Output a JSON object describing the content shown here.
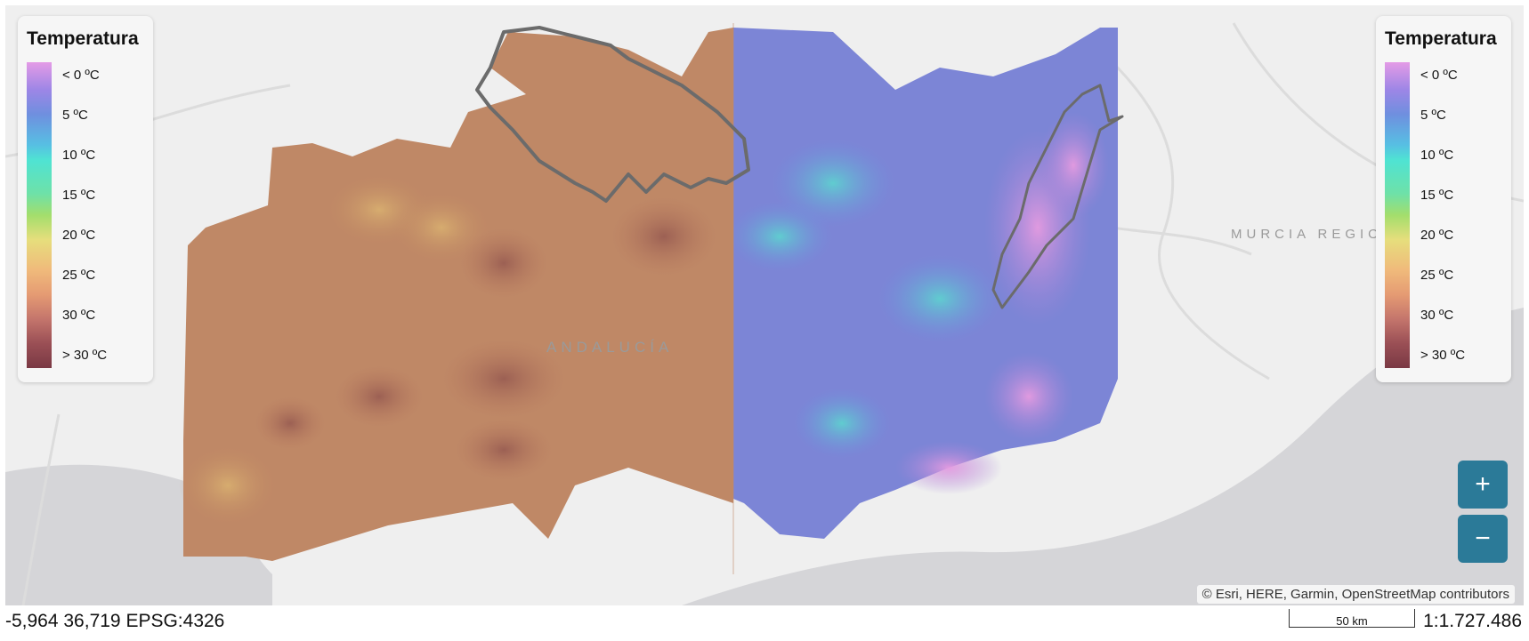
{
  "map": {
    "region_labels": {
      "andalucia": "ANDALUCÍA",
      "murcia": "MURCIA REGION"
    },
    "attribution": "© Esri, HERE, Garmin, OpenStreetMap contributors",
    "layers": {
      "left_swipe": "temperature-tinted-brown",
      "right_swipe": "temperature-purple-blue"
    }
  },
  "legend_left": {
    "title": "Temperatura",
    "entries": [
      "< 0 ºC",
      "5 ºC",
      "10 ºC",
      "15 ºC",
      "20 ºC",
      "25 ºC",
      "30 ºC",
      "> 30 ºC"
    ]
  },
  "legend_right": {
    "title": "Temperatura",
    "entries": [
      "< 0 ºC",
      "5 ºC",
      "10 ºC",
      "15 ºC",
      "20 ºC",
      "25 ºC",
      "30 ºC",
      "> 30 ºC"
    ]
  },
  "legend_colors": [
    "#e49be6",
    "#6f8fdf",
    "#4fe3d3",
    "#a3de6c",
    "#e6de7c",
    "#f0ba7b",
    "#c4756c",
    "#7a3944"
  ],
  "controls": {
    "zoom_in": "+",
    "zoom_out": "−"
  },
  "statusbar": {
    "coordinates": "-5,964 36,719 EPSG:4326",
    "scale_label": "50 km",
    "scale_ratio": "1:1.727.486"
  }
}
